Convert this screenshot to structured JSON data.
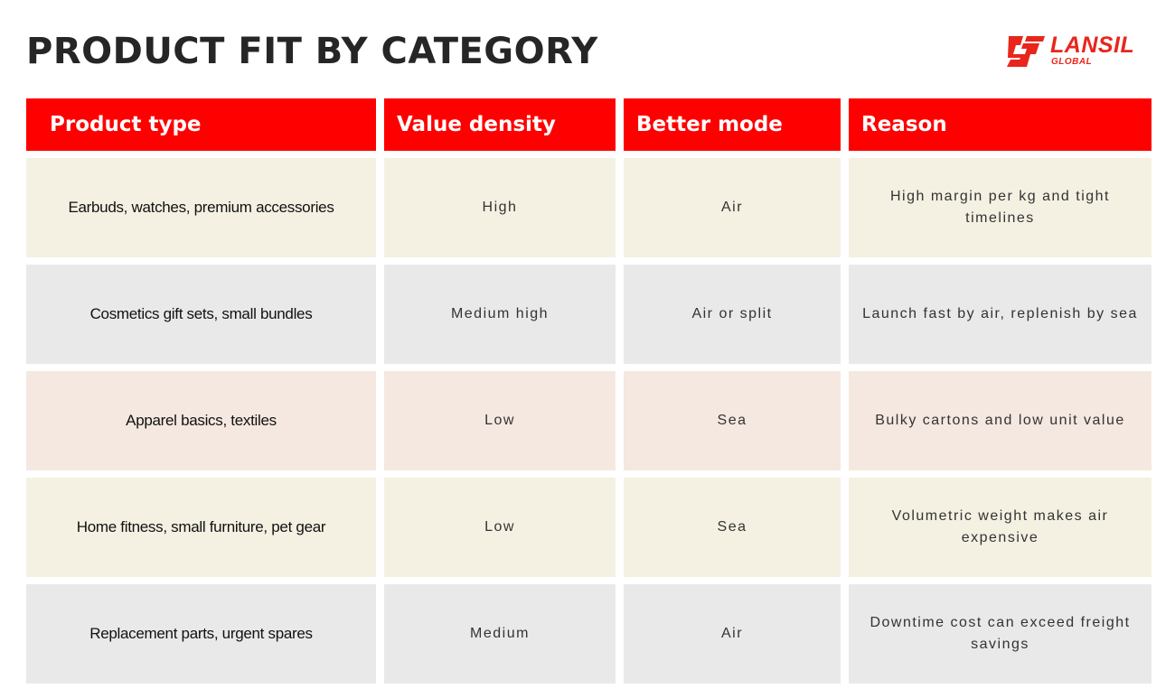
{
  "header": {
    "title": "PRODUCT FIT BY CATEGORY",
    "logo": {
      "name": "LANSIL",
      "subname": "GLOBAL"
    }
  },
  "table": {
    "columns": [
      "Product type",
      "Value density",
      "Better mode",
      "Reason"
    ],
    "rows": [
      [
        "Earbuds, watches, premium accessories",
        "High",
        "Air",
        "High margin per kg and tight timelines"
      ],
      [
        "Cosmetics gift sets, small bundles",
        "Medium high",
        "Air or split",
        "Launch fast by air, replenish by sea"
      ],
      [
        "Apparel basics, textiles",
        "Low",
        "Sea",
        "Bulky cartons and low unit value"
      ],
      [
        "Home fitness, small furniture, pet gear",
        "Low",
        "Sea",
        "Volumetric weight makes air expensive"
      ],
      [
        "Replacement parts, urgent spares",
        "Medium",
        "Air",
        "Downtime cost can exceed freight savings"
      ]
    ]
  }
}
